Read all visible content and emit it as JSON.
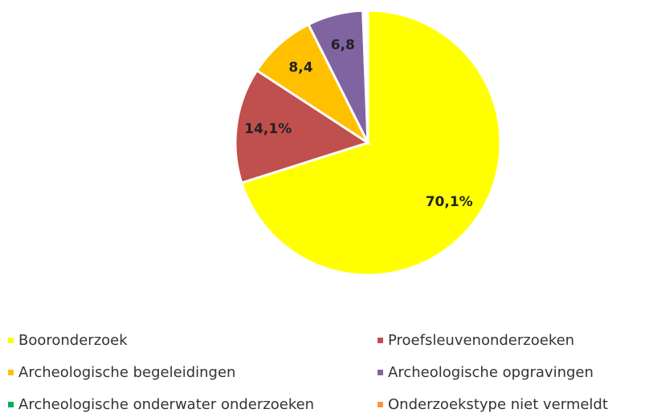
{
  "chart_data": {
    "type": "pie",
    "categories": [
      "Booronderzoek",
      "Proefsleuvenonderzoeken",
      "Archeologische begeleidingen",
      "Archeologische opgravingen",
      "Archeologische onderwater onderzoeken",
      "Onderzoekstype niet vermeldt"
    ],
    "values": [
      70.1,
      14.1,
      8.4,
      6.8,
      0.3,
      0.3
    ],
    "value_labels": [
      "70,1%",
      "14,1%",
      "8,4",
      "6,8",
      null,
      null
    ],
    "colors": [
      "#ffff00",
      "#c0504d",
      "#ffc000",
      "#8064a2",
      "#00b050",
      "#f79646"
    ]
  }
}
